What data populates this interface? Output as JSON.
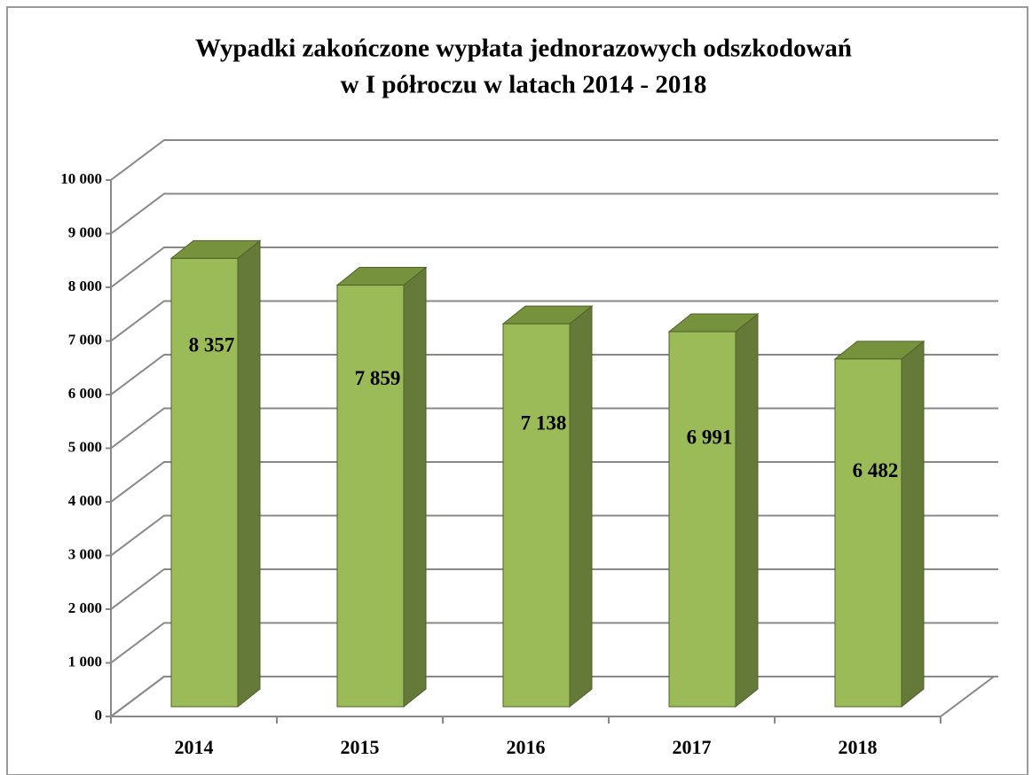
{
  "chart_data": {
    "type": "bar3d",
    "title": [
      "Wypadki zakończone wypłata jednorazowych odszkodowań",
      "w I półroczu  w latach 2014 - 2018"
    ],
    "categories": [
      "2014",
      "2015",
      "2016",
      "2017",
      "2018"
    ],
    "values": [
      8357,
      7859,
      7138,
      6991,
      6482
    ],
    "value_labels": [
      "8 357",
      "7 859",
      "7 138",
      "6 991",
      "6 482"
    ],
    "color": "#9bbb59",
    "ylim": [
      0,
      10000
    ],
    "yticks": [
      0,
      {
        "value": 1000,
        "label": "1 000"
      },
      {
        "value": 2000,
        "label": "2 000"
      },
      {
        "value": 3000,
        "label": "3 000"
      },
      {
        "value": 4000,
        "label": "4 000"
      },
      {
        "value": 5000,
        "label": "5 000"
      },
      {
        "value": 6000,
        "label": "6 000"
      },
      {
        "value": 7000,
        "label": "7 000"
      },
      {
        "value": 8000,
        "label": "8 000"
      },
      {
        "value": 9000,
        "label": "9 000"
      },
      {
        "value": 10000,
        "label": "10 000"
      }
    ],
    "grid": true
  }
}
